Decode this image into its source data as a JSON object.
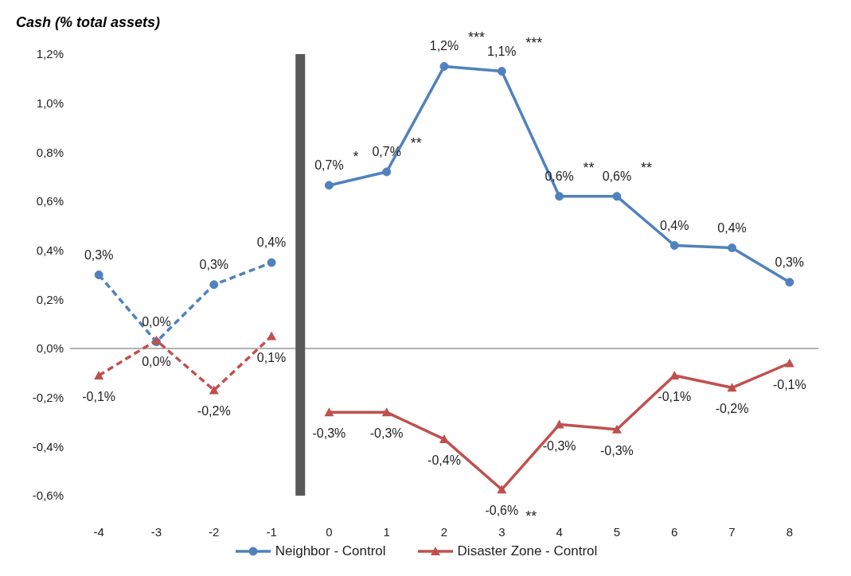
{
  "chart_data": {
    "type": "line",
    "title": "Cash (% total assets)",
    "x": [
      -4,
      -3,
      -2,
      -1,
      0,
      1,
      2,
      3,
      4,
      5,
      6,
      7,
      8
    ],
    "xlim": [
      -4.5,
      8.5
    ],
    "xticks": [
      -4,
      -3,
      -2,
      -1,
      0,
      1,
      2,
      3,
      4,
      5,
      6,
      7,
      8
    ],
    "ylim": [
      -0.6,
      1.2
    ],
    "yticks": [
      {
        "value": -0.6,
        "label": "-0,6%"
      },
      {
        "value": -0.4,
        "label": "-0,4%"
      },
      {
        "value": -0.2,
        "label": "-0,2%"
      },
      {
        "value": 0,
        "label": "0,0%"
      },
      {
        "value": 0.2,
        "label": "0,2%"
      },
      {
        "value": 0.4,
        "label": "0,4%"
      },
      {
        "value": 0.6,
        "label": "0,6%"
      },
      {
        "value": 0.8,
        "label": "0,8%"
      },
      {
        "value": 1.0,
        "label": "1,0%"
      },
      {
        "value": 1.2,
        "label": "1,2%"
      }
    ],
    "series": [
      {
        "color": "#4f81bd",
        "marker": "circle",
        "line_style": "dashed",
        "values": [
          0.3,
          0.027,
          0.26,
          0.35,
          null,
          null,
          null,
          null,
          null,
          null,
          null,
          null,
          null
        ],
        "value_labels": [
          "0,3%",
          "0,0%",
          "0,3%",
          "0,4%",
          null,
          null,
          null,
          null,
          null,
          null,
          null,
          null,
          null
        ]
      },
      {
        "color": "#c0504d",
        "marker": "triangle",
        "line_style": "dashed",
        "values": [
          -0.11,
          0.033,
          -0.17,
          0.05,
          null,
          null,
          null,
          null,
          null,
          null,
          null,
          null,
          null
        ],
        "value_labels": [
          "-0,1%",
          "0,0%",
          "-0,2%",
          "0,1%",
          null,
          null,
          null,
          null,
          null,
          null,
          null,
          null,
          null
        ]
      },
      {
        "name": "Neighbor - Control",
        "color": "#4f81bd",
        "marker": "circle",
        "line_style": "solid",
        "values": [
          null,
          null,
          null,
          null,
          0.665,
          0.72,
          1.15,
          1.13,
          0.62,
          0.62,
          0.42,
          0.41,
          0.27
        ],
        "value_labels": [
          null,
          null,
          null,
          null,
          "0,7%",
          "0,7%",
          "1,2%",
          "1,1%",
          "0,6%",
          "0,6%",
          "0,4%",
          "0,4%",
          "0,3%"
        ]
      },
      {
        "name": "Disaster Zone - Control",
        "color": "#c0504d",
        "marker": "triangle",
        "line_style": "solid",
        "values": [
          null,
          null,
          null,
          null,
          -0.26,
          -0.26,
          -0.37,
          -0.575,
          -0.31,
          -0.33,
          -0.11,
          -0.16,
          -0.06
        ],
        "value_labels": [
          null,
          null,
          null,
          null,
          "-0,3%",
          "-0,3%",
          "-0,4%",
          "-0,6%",
          "-0,3%",
          "-0,3%",
          "-0,1%",
          "-0,2%",
          "-0,1%"
        ]
      }
    ],
    "annotations": [
      {
        "text": "*",
        "x": 0,
        "y": 0.665
      },
      {
        "text": "**",
        "x": 1,
        "y": 0.72
      },
      {
        "text": "***",
        "x": 2,
        "y": 1.15
      },
      {
        "text": "***",
        "x": 3,
        "y": 1.13
      },
      {
        "text": "**",
        "x": 4,
        "y": 0.62
      },
      {
        "text": "**",
        "x": 5,
        "y": 0.62
      },
      {
        "text": "**",
        "x": 3,
        "y": -0.575
      }
    ],
    "ref_lines": [
      {
        "axis": "y",
        "value": 0,
        "color": "#999999",
        "line_style": "solid"
      },
      {
        "axis": "x",
        "value": -0.5,
        "color": "#595959",
        "line_style": "solid"
      }
    ],
    "grid": false,
    "legend": "bottom"
  }
}
